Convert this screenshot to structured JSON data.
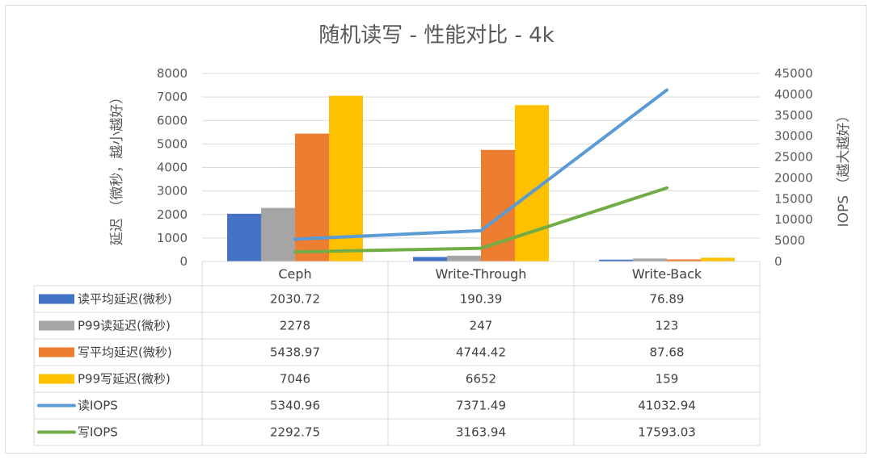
{
  "chart_data": {
    "type": "bar",
    "title": "随机读写 - 性能对比 - 4k",
    "categories": [
      "Ceph",
      "Write-Through",
      "Write-Back"
    ],
    "y_left": {
      "label": "延迟 （微秒，越小越好）",
      "range": [
        0,
        8000
      ],
      "ticks": [
        "0",
        "1000",
        "2000",
        "3000",
        "4000",
        "5000",
        "6000",
        "7000",
        "8000"
      ]
    },
    "y_right": {
      "label": "IOPS （越大越好）",
      "range": [
        0,
        45000
      ],
      "ticks": [
        "0",
        "5000",
        "10000",
        "15000",
        "20000",
        "25000",
        "30000",
        "35000",
        "40000",
        "45000"
      ]
    },
    "grid": true,
    "legend": "data-table-left",
    "series": [
      {
        "name": "读平均延迟(微秒)",
        "kind": "bar",
        "axis": "left",
        "color": "#4472c4",
        "values": [
          2030.72,
          190.39,
          76.89
        ],
        "labels": [
          "2030.72",
          "190.39",
          "76.89"
        ]
      },
      {
        "name": "P99读延迟(微秒)",
        "kind": "bar",
        "axis": "left",
        "color": "#a5a5a5",
        "values": [
          2278,
          247,
          123
        ],
        "labels": [
          "2278",
          "247",
          "123"
        ]
      },
      {
        "name": "写平均延迟(微秒)",
        "kind": "bar",
        "axis": "left",
        "color": "#ed7d31",
        "values": [
          5438.97,
          4744.42,
          87.68
        ],
        "labels": [
          "5438.97",
          "4744.42",
          "87.68"
        ]
      },
      {
        "name": "P99写延迟(微秒)",
        "kind": "bar",
        "axis": "left",
        "color": "#ffc000",
        "values": [
          7046,
          6652,
          159
        ],
        "labels": [
          "7046",
          "6652",
          "159"
        ]
      },
      {
        "name": "读IOPS",
        "kind": "line",
        "axis": "right",
        "color": "#5b9bd5",
        "values": [
          5340.96,
          7371.49,
          41032.94
        ],
        "labels": [
          "5340.96",
          "7371.49",
          "41032.94"
        ]
      },
      {
        "name": "写IOPS",
        "kind": "line",
        "axis": "right",
        "color": "#70ad47",
        "values": [
          2292.75,
          3163.94,
          17593.03
        ],
        "labels": [
          "2292.75",
          "3163.94",
          "17593.03"
        ]
      }
    ]
  }
}
